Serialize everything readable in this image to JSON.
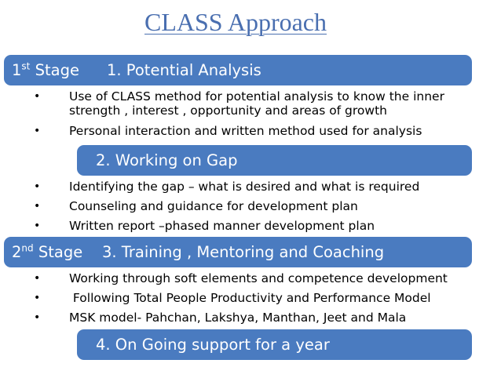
{
  "title": "CLASS Approach",
  "sections": [
    {
      "stage_num": "1",
      "stage_sup": "st",
      "stage_word": "Stage",
      "heading": "1. Potential Analysis",
      "bullets": [
        "Use of CLASS method for potential analysis to know the         inner strength , interest , opportunity and areas of growth",
        "Personal interaction and written method used for analysis"
      ]
    },
    {
      "heading": "2. Working on Gap",
      "bullets": [
        "Identifying the gap – what is desired and what is required",
        "Counseling and guidance  for development plan",
        "Written report –phased manner development plan"
      ]
    },
    {
      "stage_num": "2",
      "stage_sup": "nd",
      "stage_word": "Stage",
      "heading": "3. Training , Mentoring and Coaching",
      "bullets": [
        "Working through soft elements and competence development",
        " Following Total People Productivity and Performance Model",
        "MSK model- Pahchan, Lakshya, Manthan, Jeet and Mala"
      ]
    },
    {
      "heading": "4. On Going support for a year",
      "bullets": []
    }
  ],
  "colors": {
    "title": "#4a6fb0",
    "bar": "#4a7bc0",
    "bar_text": "#ffffff"
  },
  "bullet_glyph": "•"
}
